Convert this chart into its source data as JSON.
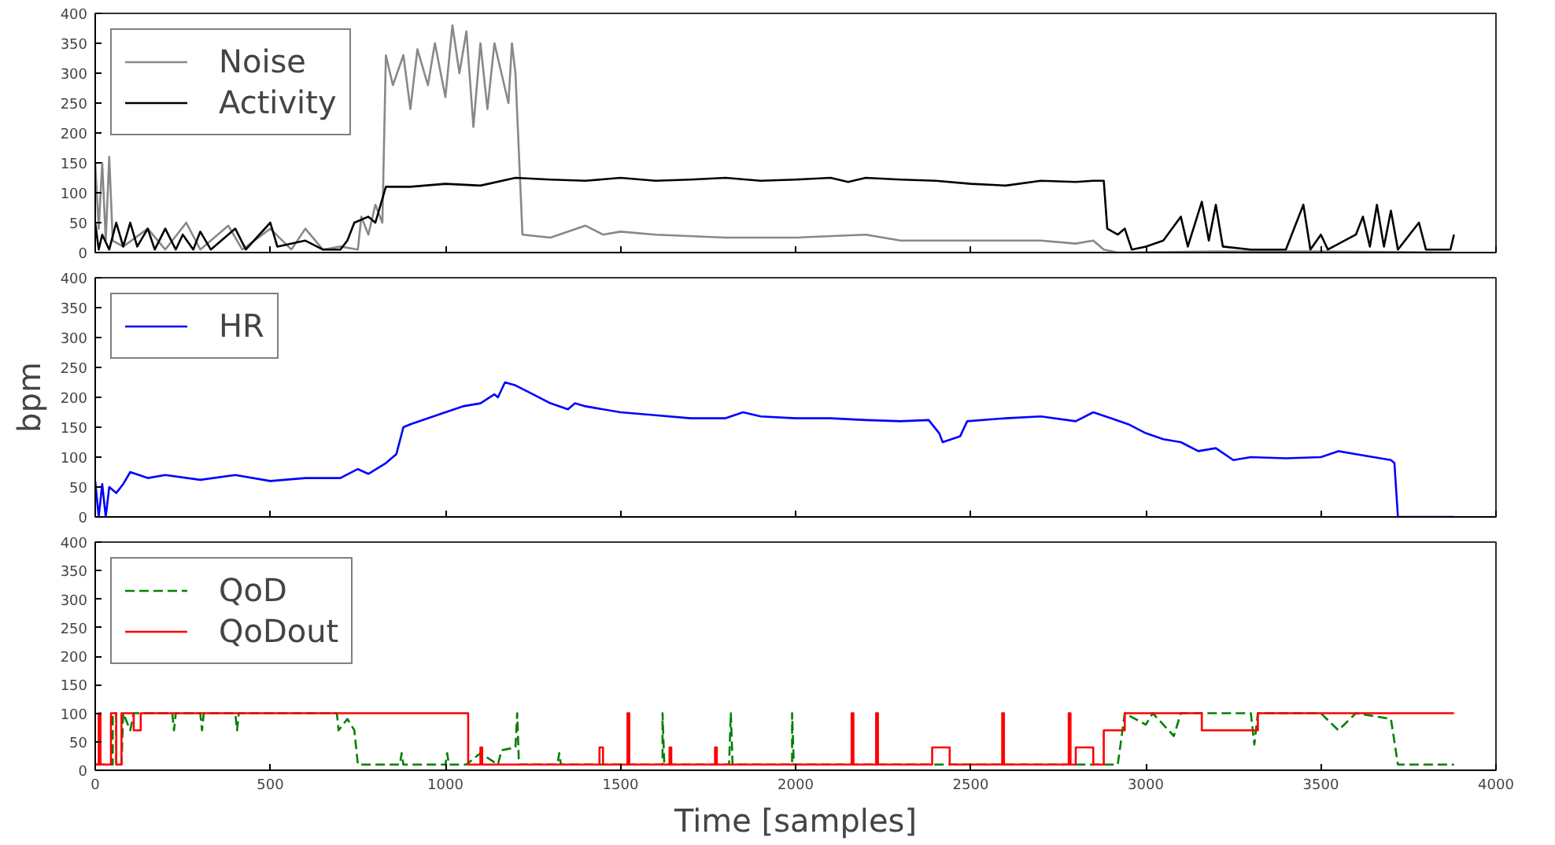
{
  "chart_data": [
    {
      "type": "line",
      "xlim": [
        0,
        4000
      ],
      "ylim": [
        0,
        400
      ],
      "xticks": [
        0,
        500,
        1000,
        1500,
        2000,
        2500,
        3000,
        3500,
        4000
      ],
      "yticks": [
        0,
        50,
        100,
        150,
        200,
        250,
        300,
        350,
        400
      ],
      "tick_labels": "y",
      "grid": false,
      "legend": "top left",
      "line_style": "solid",
      "series": [
        {
          "name": "Noise",
          "color": "#888888",
          "x": [
            0,
            10,
            20,
            30,
            40,
            50,
            80,
            150,
            200,
            260,
            300,
            380,
            420,
            500,
            560,
            600,
            650,
            700,
            750,
            760,
            780,
            800,
            820,
            830,
            850,
            880,
            900,
            920,
            950,
            970,
            1000,
            1020,
            1040,
            1060,
            1080,
            1100,
            1120,
            1140,
            1160,
            1180,
            1190,
            1200,
            1220,
            1300,
            1400,
            1450,
            1500,
            1600,
            1800,
            2000,
            2200,
            2300,
            2500,
            2700,
            2800,
            2850,
            2880,
            2920,
            3200,
            3500,
            3880
          ],
          "values": [
            150,
            40,
            150,
            20,
            160,
            20,
            10,
            40,
            5,
            50,
            5,
            45,
            5,
            40,
            5,
            40,
            5,
            10,
            5,
            60,
            30,
            80,
            50,
            330,
            280,
            330,
            240,
            340,
            280,
            350,
            260,
            380,
            300,
            370,
            210,
            350,
            240,
            350,
            300,
            250,
            350,
            300,
            30,
            25,
            45,
            30,
            35,
            30,
            25,
            25,
            30,
            20,
            20,
            20,
            15,
            20,
            5,
            0,
            2,
            2,
            0
          ]
        },
        {
          "name": "Activity",
          "color": "#000000",
          "x": [
            0,
            10,
            20,
            40,
            60,
            80,
            100,
            120,
            150,
            170,
            200,
            230,
            250,
            280,
            300,
            330,
            400,
            430,
            500,
            520,
            600,
            650,
            700,
            720,
            740,
            780,
            800,
            830,
            900,
            1000,
            1100,
            1200,
            1300,
            1400,
            1500,
            1600,
            1700,
            1800,
            1900,
            2000,
            2100,
            2150,
            2200,
            2300,
            2400,
            2500,
            2600,
            2700,
            2800,
            2850,
            2880,
            2890,
            2920,
            2940,
            2960,
            3000,
            3050,
            3100,
            3120,
            3160,
            3180,
            3200,
            3220,
            3300,
            3400,
            3450,
            3470,
            3500,
            3520,
            3600,
            3620,
            3640,
            3660,
            3680,
            3700,
            3720,
            3780,
            3800,
            3870,
            3880
          ],
          "values": [
            50,
            5,
            30,
            5,
            50,
            10,
            50,
            10,
            40,
            5,
            40,
            5,
            30,
            5,
            35,
            5,
            40,
            5,
            50,
            10,
            20,
            5,
            5,
            20,
            50,
            60,
            50,
            110,
            110,
            115,
            112,
            125,
            122,
            120,
            125,
            120,
            122,
            125,
            120,
            122,
            125,
            118,
            125,
            122,
            120,
            115,
            112,
            120,
            118,
            120,
            120,
            40,
            30,
            40,
            5,
            10,
            20,
            60,
            10,
            85,
            20,
            80,
            10,
            5,
            5,
            80,
            5,
            30,
            5,
            30,
            60,
            10,
            80,
            10,
            70,
            5,
            50,
            5,
            5,
            30
          ]
        }
      ]
    },
    {
      "type": "line",
      "xlim": [
        0,
        4000
      ],
      "ylim": [
        0,
        400
      ],
      "xticks": [
        0,
        500,
        1000,
        1500,
        2000,
        2500,
        3000,
        3500,
        4000
      ],
      "yticks": [
        0,
        50,
        100,
        150,
        200,
        250,
        300,
        350,
        400
      ],
      "tick_labels": "y",
      "grid": false,
      "legend": "top left",
      "line_style": "solid",
      "ylabel": "bpm",
      "series": [
        {
          "name": "HR",
          "color": "#0000ff",
          "x": [
            0,
            10,
            20,
            30,
            40,
            60,
            80,
            100,
            150,
            200,
            300,
            400,
            500,
            600,
            700,
            750,
            780,
            830,
            860,
            880,
            900,
            1000,
            1050,
            1100,
            1140,
            1150,
            1170,
            1200,
            1250,
            1300,
            1350,
            1370,
            1400,
            1500,
            1600,
            1700,
            1800,
            1850,
            1900,
            2000,
            2100,
            2200,
            2300,
            2380,
            2410,
            2420,
            2470,
            2490,
            2600,
            2700,
            2800,
            2850,
            2900,
            2950,
            3000,
            3050,
            3100,
            3150,
            3200,
            3250,
            3300,
            3400,
            3500,
            3550,
            3600,
            3650,
            3700,
            3710,
            3720,
            3880
          ],
          "values": [
            60,
            0,
            55,
            0,
            50,
            40,
            55,
            75,
            65,
            70,
            62,
            70,
            60,
            65,
            65,
            80,
            72,
            90,
            105,
            150,
            155,
            175,
            185,
            190,
            205,
            200,
            225,
            220,
            205,
            190,
            180,
            190,
            185,
            175,
            170,
            165,
            165,
            175,
            168,
            165,
            165,
            162,
            160,
            162,
            140,
            125,
            135,
            160,
            165,
            168,
            160,
            175,
            165,
            155,
            140,
            130,
            125,
            110,
            115,
            95,
            100,
            98,
            100,
            110,
            105,
            100,
            95,
            90,
            0,
            0
          ]
        }
      ]
    },
    {
      "type": "line",
      "xlim": [
        0,
        4000
      ],
      "ylim": [
        0,
        400
      ],
      "xticks": [
        0,
        500,
        1000,
        1500,
        2000,
        2500,
        3000,
        3500,
        4000
      ],
      "yticks": [
        0,
        50,
        100,
        150,
        200,
        250,
        300,
        350,
        400
      ],
      "grid": false,
      "legend": "top left",
      "xlabel": "Time [samples]",
      "series": [
        {
          "name": "QoD",
          "color": "#008000",
          "line_style": "dashed",
          "x": [
            0,
            50,
            50,
            60,
            60,
            75,
            80,
            100,
            110,
            220,
            225,
            230,
            300,
            305,
            310,
            400,
            405,
            410,
            690,
            695,
            720,
            740,
            750,
            870,
            875,
            880,
            1000,
            1005,
            1010,
            1060,
            1100,
            1150,
            1160,
            1200,
            1205,
            1210,
            1320,
            1325,
            1330,
            1620,
            1620,
            1625,
            1810,
            1815,
            1820,
            1990,
            1990,
            1995,
            2920,
            2940,
            3000,
            3020,
            3080,
            3100,
            3300,
            3310,
            3320,
            3500,
            3550,
            3600,
            3700,
            3720,
            3880
          ],
          "values": [
            10,
            10,
            100,
            100,
            10,
            10,
            100,
            70,
            100,
            100,
            70,
            100,
            100,
            70,
            100,
            100,
            70,
            100,
            100,
            70,
            90,
            70,
            10,
            10,
            30,
            10,
            10,
            30,
            10,
            10,
            30,
            10,
            35,
            40,
            100,
            10,
            10,
            30,
            10,
            10,
            100,
            10,
            10,
            100,
            10,
            10,
            100,
            10,
            10,
            100,
            80,
            100,
            60,
            100,
            100,
            45,
            100,
            100,
            70,
            100,
            90,
            10,
            10
          ]
        },
        {
          "name": "QoDout",
          "color": "#ff0000",
          "line_style": "solid",
          "x": [
            0,
            10,
            10,
            15,
            15,
            45,
            45,
            60,
            60,
            75,
            75,
            110,
            110,
            130,
            130,
            1065,
            1065,
            1100,
            1100,
            1105,
            1105,
            1440,
            1440,
            1450,
            1450,
            1520,
            1520,
            1525,
            1525,
            1640,
            1640,
            1645,
            1645,
            1770,
            1770,
            1775,
            1775,
            2160,
            2160,
            2165,
            2165,
            2230,
            2230,
            2235,
            2235,
            2390,
            2390,
            2440,
            2440,
            2590,
            2590,
            2595,
            2595,
            2780,
            2780,
            2785,
            2785,
            2800,
            2800,
            2850,
            2850,
            2880,
            2880,
            2940,
            2940,
            3160,
            3160,
            3320,
            3320,
            3880
          ],
          "values": [
            10,
            10,
            100,
            100,
            10,
            10,
            100,
            100,
            10,
            10,
            100,
            100,
            70,
            70,
            100,
            100,
            10,
            10,
            40,
            40,
            10,
            10,
            40,
            40,
            10,
            10,
            100,
            100,
            10,
            10,
            40,
            40,
            10,
            10,
            40,
            40,
            10,
            10,
            100,
            100,
            10,
            10,
            100,
            100,
            10,
            10,
            40,
            40,
            10,
            10,
            100,
            100,
            10,
            10,
            100,
            100,
            10,
            10,
            40,
            40,
            10,
            10,
            70,
            70,
            100,
            100,
            70,
            70,
            100,
            100
          ]
        }
      ]
    }
  ]
}
